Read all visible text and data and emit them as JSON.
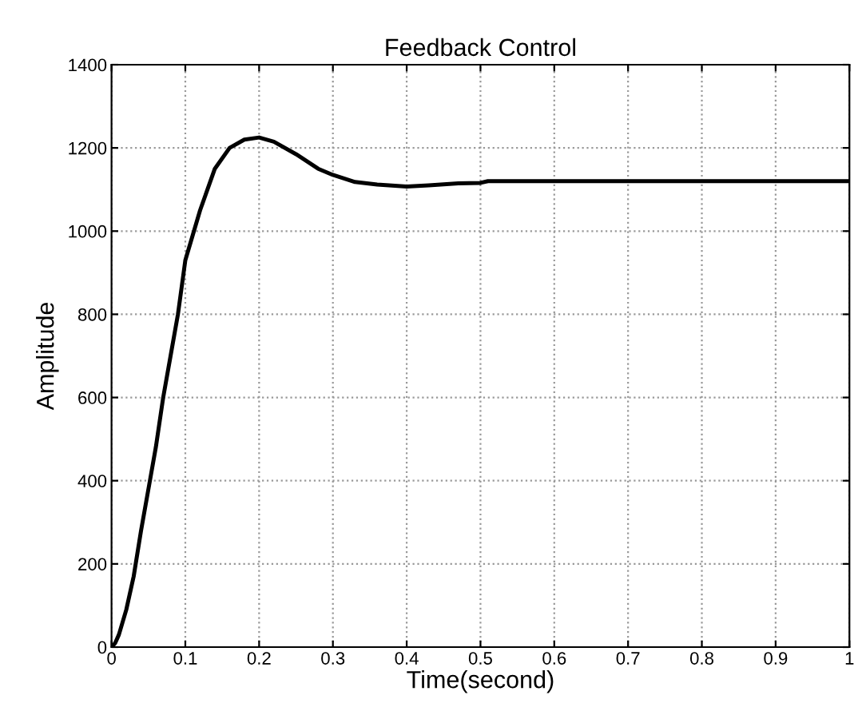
{
  "chart_data": {
    "type": "line",
    "title": "Feedback Control",
    "xlabel": "Time(second)",
    "ylabel": "Amplitude",
    "x": [
      0,
      0.005,
      0.01,
      0.02,
      0.03,
      0.04,
      0.05,
      0.06,
      0.07,
      0.08,
      0.09,
      0.1,
      0.12,
      0.14,
      0.16,
      0.18,
      0.2,
      0.22,
      0.25,
      0.28,
      0.3,
      0.33,
      0.36,
      0.4,
      0.43,
      0.47,
      0.5,
      0.51,
      0.6,
      0.7,
      0.8,
      0.9,
      1
    ],
    "series": [
      {
        "color": "#000000",
        "values": [
          0,
          10,
          30,
          90,
          170,
          280,
          380,
          480,
          600,
          700,
          800,
          930,
          1050,
          1150,
          1200,
          1220,
          1225,
          1215,
          1185,
          1150,
          1135,
          1118,
          1112,
          1107,
          1110,
          1115,
          1116,
          1120,
          1120,
          1120,
          1120,
          1120,
          1120
        ]
      }
    ],
    "xlim": [
      0,
      1
    ],
    "ylim": [
      0,
      1400
    ],
    "xticks": [
      0,
      0.1,
      0.2,
      0.3,
      0.4,
      0.5,
      0.6,
      0.7,
      0.8,
      0.9,
      1
    ],
    "yticks": [
      0,
      200,
      400,
      600,
      800,
      1000,
      1200,
      1400
    ],
    "grid": true,
    "line_style": "solid",
    "marker": "none"
  }
}
